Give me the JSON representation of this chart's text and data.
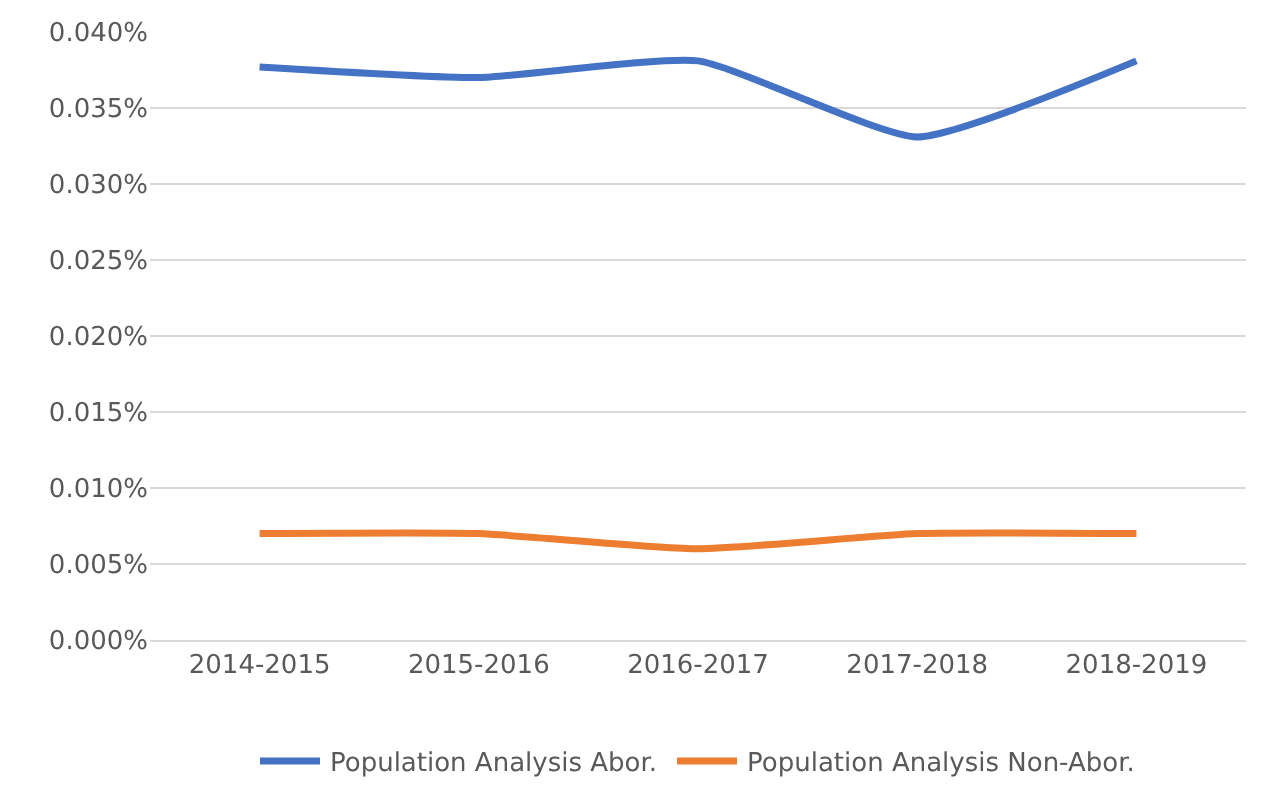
{
  "chart_data": {
    "type": "line",
    "categories": [
      "2014-2015",
      "2015-2016",
      "2016-2017",
      "2017-2018",
      "2018-2019"
    ],
    "series": [
      {
        "name": "Population Analysis Abor.",
        "color": "#4472c4",
        "values": [
          0.0377,
          0.037,
          0.0381,
          0.0331,
          0.0381
        ]
      },
      {
        "name": "Population Analysis Non-Abor.",
        "color": "#ed7d31",
        "values": [
          0.007,
          0.007,
          0.006,
          0.007,
          0.007
        ]
      }
    ],
    "ylim": [
      0,
      0.04
    ],
    "yticks": [
      {
        "value": 0,
        "label": "0.000%"
      },
      {
        "value": 0.005,
        "label": "0.005%"
      },
      {
        "value": 0.01,
        "label": "0.010%"
      },
      {
        "value": 0.015,
        "label": "0.015%"
      },
      {
        "value": 0.02,
        "label": "0.020%"
      },
      {
        "value": 0.025,
        "label": "0.025%"
      },
      {
        "value": 0.03,
        "label": "0.030%"
      },
      {
        "value": 0.035,
        "label": "0.035%"
      },
      {
        "value": 0.04,
        "label": "0.040%"
      }
    ],
    "grid": "y",
    "legend": "bottom",
    "marker": "none",
    "line_style": "solid"
  }
}
